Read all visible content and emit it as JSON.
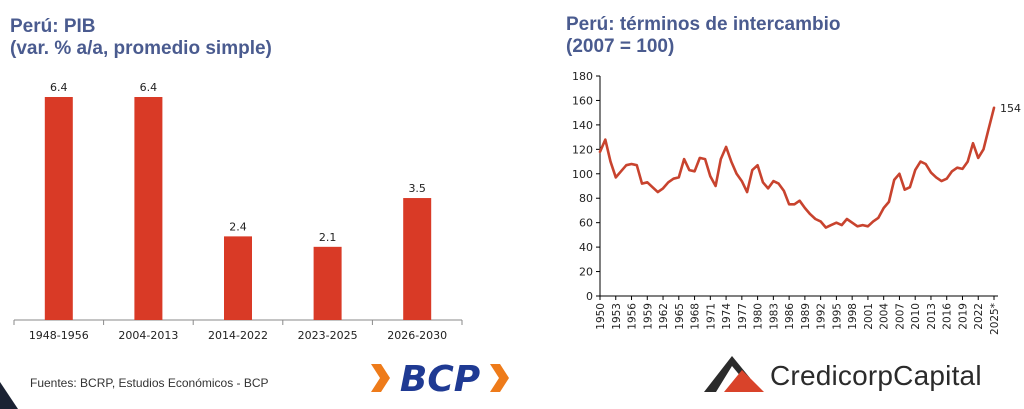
{
  "colors": {
    "title": "#4a5b8f",
    "bar": "#d93a26",
    "line": "#c8432e",
    "bcp_blue": "#1f3a93",
    "bcp_orange": "#ee7b1a",
    "credicorp_red": "#d9432a",
    "credicorp_dark": "#2b2b2b"
  },
  "charts": {
    "pib": {
      "title_line1": "Perú: PIB",
      "title_line2": "(var. % a/a, promedio simple)"
    },
    "tot": {
      "title_line1": "Perú: términos de intercambio",
      "title_line2": "(2007 = 100)",
      "end_label": "154"
    }
  },
  "chart_data": [
    {
      "type": "bar",
      "categories": [
        "1948-1956",
        "2004-2013",
        "2014-2022",
        "2023-2025",
        "2026-2030"
      ],
      "values": [
        6.4,
        6.4,
        2.4,
        2.1,
        3.5
      ],
      "value_labels": [
        "6.4",
        "6.4",
        "2.4",
        "2.1",
        "3.5"
      ],
      "title": "Perú: PIB (var. % a/a, promedio simple)",
      "ylim": [
        0,
        6.8
      ],
      "grid": false
    },
    {
      "type": "line",
      "title": "Perú: términos de intercambio (2007 = 100)",
      "ylim": [
        0,
        180
      ],
      "yticks": [
        0,
        20,
        40,
        60,
        80,
        100,
        120,
        140,
        160,
        180
      ],
      "xticks": [
        "1950",
        "1953",
        "1956",
        "1959",
        "1962",
        "1965",
        "1968",
        "1971",
        "1974",
        "1977",
        "1980",
        "1983",
        "1986",
        "1989",
        "1992",
        "1995",
        "1998",
        "2001",
        "2004",
        "2007",
        "2010",
        "2013",
        "2016",
        "2019",
        "2022",
        "2025*"
      ],
      "grid": false,
      "x": [
        1950,
        1951,
        1952,
        1953,
        1954,
        1955,
        1956,
        1957,
        1958,
        1959,
        1960,
        1961,
        1962,
        1963,
        1964,
        1965,
        1966,
        1967,
        1968,
        1969,
        1970,
        1971,
        1972,
        1973,
        1974,
        1975,
        1976,
        1977,
        1978,
        1979,
        1980,
        1981,
        1982,
        1983,
        1984,
        1985,
        1986,
        1987,
        1988,
        1989,
        1990,
        1991,
        1992,
        1993,
        1994,
        1995,
        1996,
        1997,
        1998,
        1999,
        2000,
        2001,
        2002,
        2003,
        2004,
        2005,
        2006,
        2007,
        2008,
        2009,
        2010,
        2011,
        2012,
        2013,
        2014,
        2015,
        2016,
        2017,
        2018,
        2019,
        2020,
        2021,
        2022,
        2023,
        2024,
        2025
      ],
      "y": [
        118,
        128,
        110,
        97,
        102,
        107,
        108,
        107,
        92,
        93,
        89,
        85,
        88,
        93,
        96,
        97,
        112,
        103,
        102,
        113,
        112,
        98,
        90,
        112,
        122,
        110,
        100,
        94,
        85,
        103,
        107,
        93,
        88,
        94,
        92,
        86,
        75,
        75,
        78,
        72,
        67,
        63,
        61,
        56,
        58,
        60,
        58,
        63,
        60,
        57,
        58,
        57,
        61,
        64,
        72,
        77,
        95,
        100,
        87,
        89,
        103,
        110,
        108,
        101,
        97,
        94,
        96,
        102,
        105,
        104,
        110,
        125,
        113,
        120,
        137,
        154
      ],
      "end_label": "154"
    }
  ],
  "footer": {
    "source": "Fuentes: BCRP, Estudios Económicos - BCP",
    "bcp_logo_text": "BCP",
    "credicorp_logo_text": "CredicorpCapital"
  }
}
